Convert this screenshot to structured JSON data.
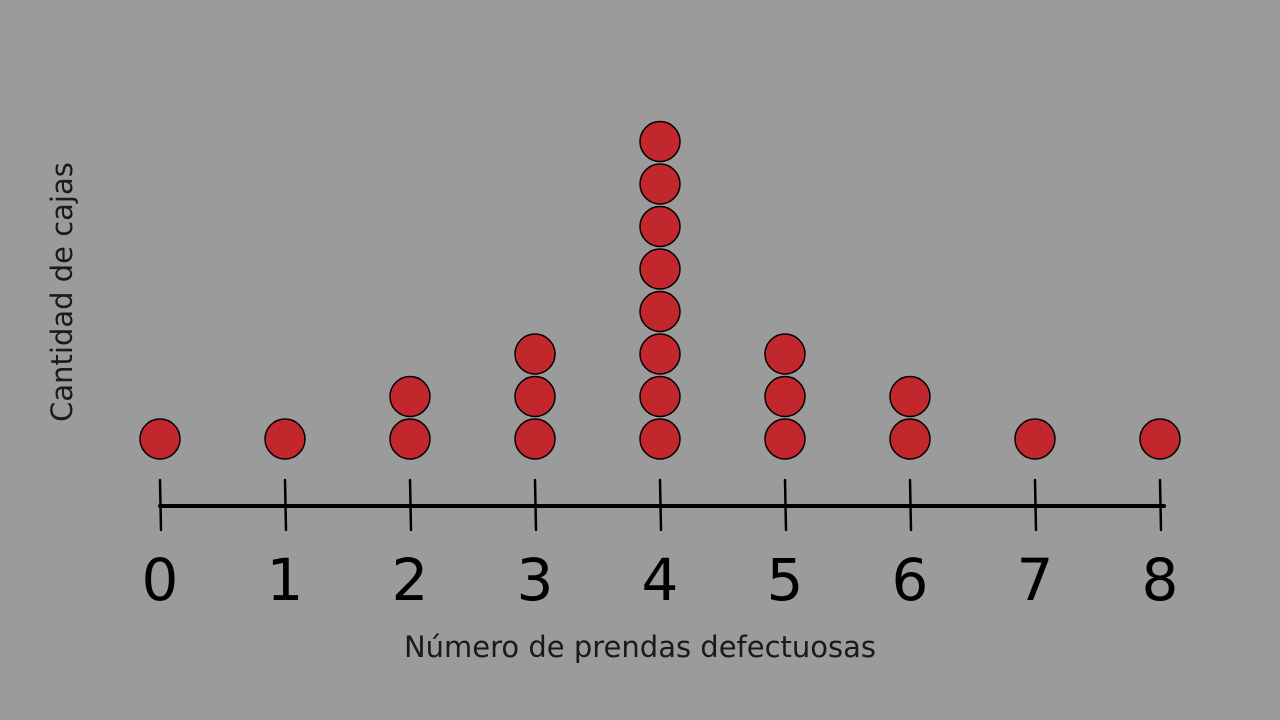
{
  "chart_data": {
    "type": "dot",
    "xlabel": "Número de prendas defectuosas",
    "ylabel": "Cantidad de cajas",
    "categories": [
      "0",
      "1",
      "2",
      "3",
      "4",
      "5",
      "6",
      "7",
      "8"
    ],
    "values": [
      1,
      1,
      2,
      3,
      8,
      3,
      2,
      1,
      1
    ],
    "dot_color": "#c1272d",
    "axis_color": "#000000",
    "grid": false
  }
}
